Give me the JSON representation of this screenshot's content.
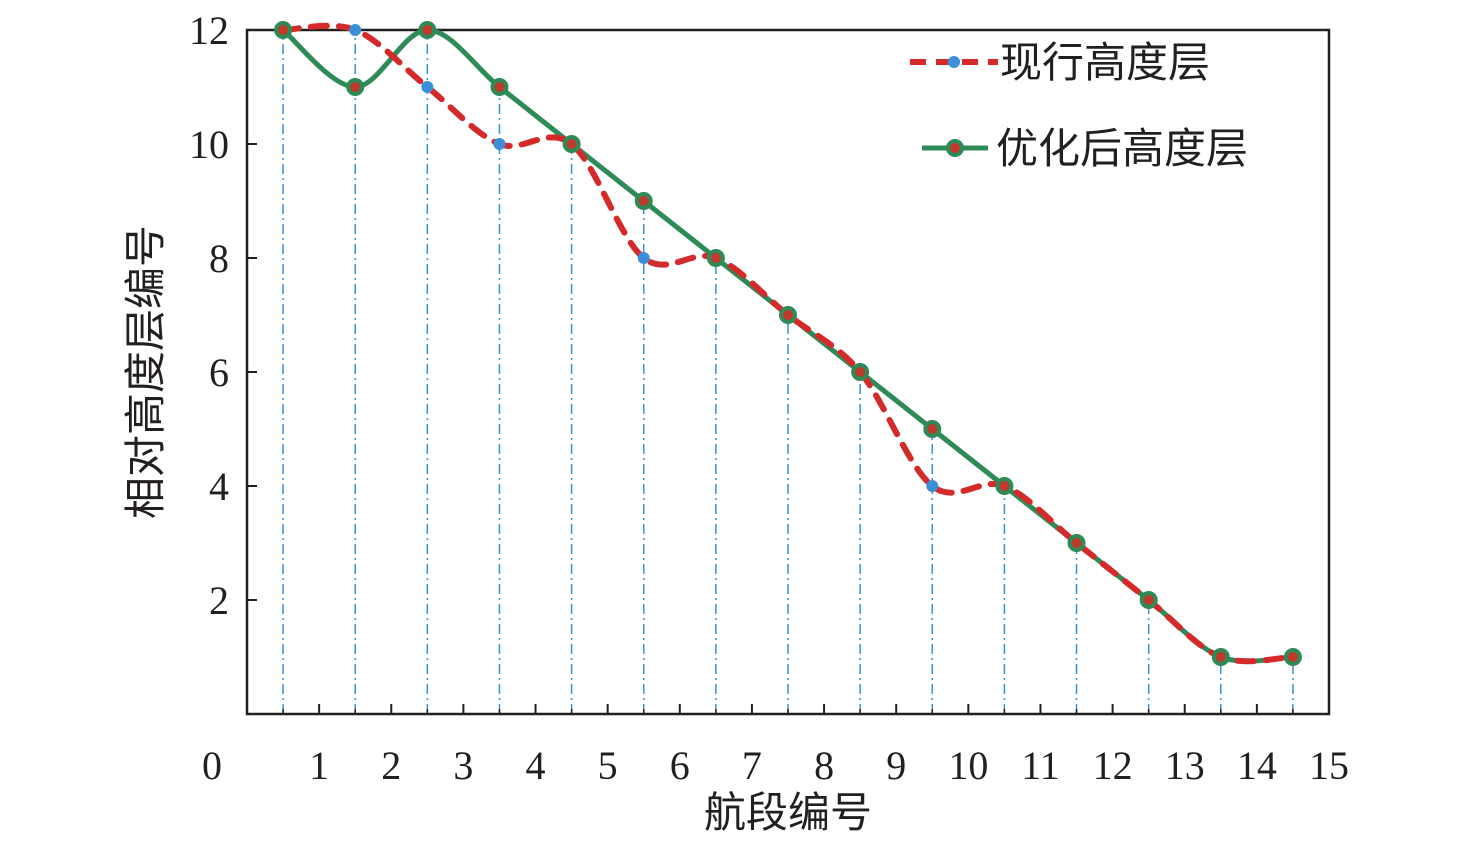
{
  "chart_data": {
    "type": "line",
    "xlabel": "航段编号",
    "ylabel": "相对高度层编号",
    "xlim": [
      0,
      15
    ],
    "ylim": [
      0,
      12
    ],
    "xticks": [
      "0",
      "1",
      "2",
      "3",
      "4",
      "5",
      "6",
      "7",
      "8",
      "9",
      "10",
      "11",
      "12",
      "13",
      "14",
      "15"
    ],
    "yticks": [
      "2",
      "4",
      "6",
      "8",
      "10",
      "12"
    ],
    "grid": false,
    "legend_position": "top-right",
    "vertical_guides": true,
    "series": [
      {
        "name": "现行高度层",
        "style": "dashed",
        "color": "#d42a2a",
        "marker_color": "#3a8fd8",
        "x": [
          0.5,
          1.5,
          2.5,
          3.5,
          4.5,
          5.5,
          6.5,
          7.5,
          8.5,
          9.5,
          10.5,
          11.5,
          12.5,
          13.5,
          14.5
        ],
        "y": [
          12,
          12,
          11,
          10,
          10,
          8,
          8,
          7,
          6,
          4,
          4,
          3,
          2,
          1,
          1
        ]
      },
      {
        "name": "优化后高度层",
        "style": "solid",
        "color": "#2e8b57",
        "marker_color": "#c0392b",
        "x": [
          0.5,
          1.5,
          2.5,
          3.5,
          4.5,
          5.5,
          6.5,
          7.5,
          8.5,
          9.5,
          10.5,
          11.5,
          12.5,
          13.5,
          14.5
        ],
        "y": [
          12,
          11,
          12,
          11,
          10,
          9,
          8,
          7,
          6,
          5,
          4,
          3,
          2,
          1,
          1
        ]
      }
    ]
  }
}
